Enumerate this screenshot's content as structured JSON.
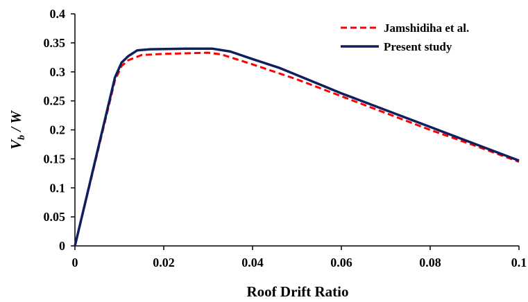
{
  "chart_data": {
    "type": "line",
    "title": "",
    "xlabel": "Roof Drift Ratio",
    "ylabel_main": "V",
    "ylabel_sub": "b",
    "ylabel_tail": " / W",
    "xlim": [
      0,
      0.1
    ],
    "ylim": [
      0,
      0.4
    ],
    "x_ticks": [
      0,
      0.02,
      0.04,
      0.06,
      0.08,
      0.1
    ],
    "x_tick_labels": [
      "0",
      "0.02",
      "0.04",
      "0.06",
      "0.08",
      "0.1"
    ],
    "y_ticks": [
      0,
      0.05,
      0.1,
      0.15,
      0.2,
      0.25,
      0.3,
      0.35,
      0.4
    ],
    "y_tick_labels": [
      "0",
      "0.05",
      "0.1",
      "0.15",
      "0.2",
      "0.25",
      "0.3",
      "0.35",
      "0.4"
    ],
    "grid": false,
    "legend_position": "top-right",
    "series": [
      {
        "name": "Jamshidiha et al.",
        "color": "#ff0000",
        "style": "dashed",
        "points": [
          [
            0,
            0
          ],
          [
            0.009,
            0.285
          ],
          [
            0.0105,
            0.31
          ],
          [
            0.012,
            0.32
          ],
          [
            0.015,
            0.329
          ],
          [
            0.02,
            0.331
          ],
          [
            0.03,
            0.333
          ],
          [
            0.033,
            0.33
          ],
          [
            0.04,
            0.313
          ],
          [
            0.05,
            0.287
          ],
          [
            0.06,
            0.258
          ],
          [
            0.07,
            0.229
          ],
          [
            0.08,
            0.2
          ],
          [
            0.09,
            0.173
          ],
          [
            0.1,
            0.145
          ]
        ]
      },
      {
        "name": "Present study",
        "color": "#0d1f5c",
        "style": "solid",
        "points": [
          [
            0,
            0
          ],
          [
            0.009,
            0.29
          ],
          [
            0.0105,
            0.316
          ],
          [
            0.012,
            0.327
          ],
          [
            0.014,
            0.337
          ],
          [
            0.017,
            0.339
          ],
          [
            0.025,
            0.34
          ],
          [
            0.031,
            0.34
          ],
          [
            0.035,
            0.335
          ],
          [
            0.04,
            0.322
          ],
          [
            0.046,
            0.307
          ],
          [
            0.06,
            0.263
          ],
          [
            0.07,
            0.234
          ],
          [
            0.08,
            0.205
          ],
          [
            0.09,
            0.176
          ],
          [
            0.1,
            0.147
          ]
        ]
      }
    ]
  }
}
